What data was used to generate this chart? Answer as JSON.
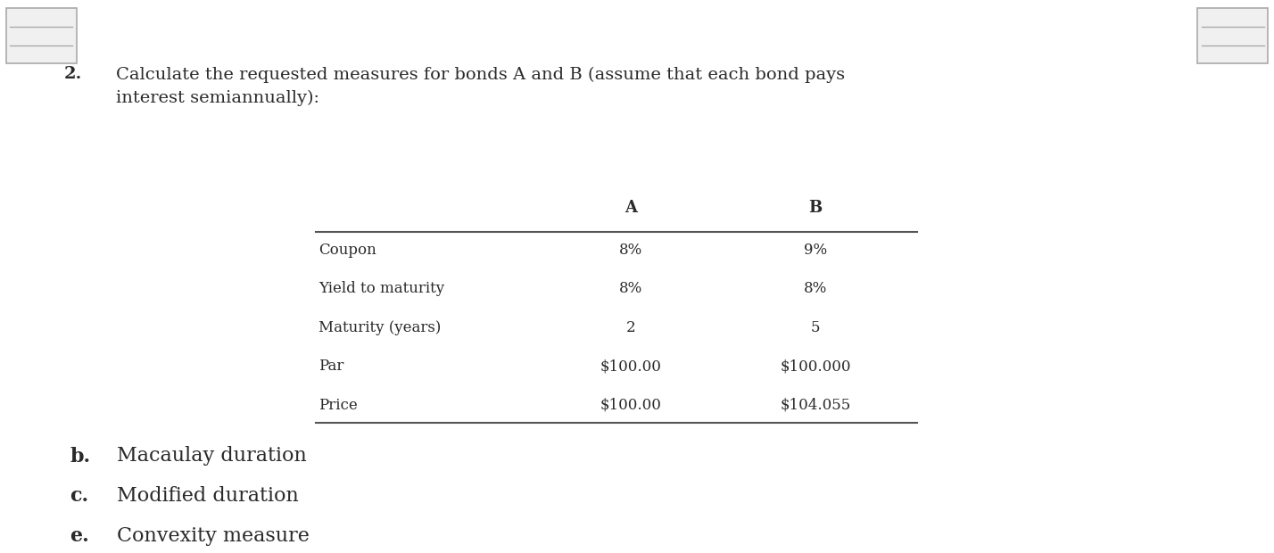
{
  "background_color": "#ffffff",
  "question_number": "2.",
  "question_text": "Calculate the requested measures for bonds A and B (assume that each bond pays\ninterest semiannually):",
  "col_headers": [
    "A",
    "B"
  ],
  "row_labels": [
    "Coupon",
    "Yield to maturity",
    "Maturity (years)",
    "Par",
    "Price"
  ],
  "col_A": [
    "8%",
    "8%",
    "2",
    "$100.00",
    "$100.00"
  ],
  "col_B": [
    "9%",
    "8%",
    "5",
    "$100.000",
    "$104.055"
  ],
  "sub_items": [
    {
      "label": "b.",
      "text": "Macaulay duration"
    },
    {
      "label": "c.",
      "text": "Modified duration"
    },
    {
      "label": "e.",
      "text": "Convexity measure"
    }
  ],
  "font_family": "DejaVu Serif",
  "question_fontsize": 14,
  "table_header_fontsize": 13,
  "table_body_fontsize": 12,
  "sub_item_fontsize": 16,
  "text_color": "#2a2a2a",
  "border_line_color": "#555555",
  "corner_edge_color": "#aaaaaa",
  "corner_fill_color": "#f0f0f0"
}
